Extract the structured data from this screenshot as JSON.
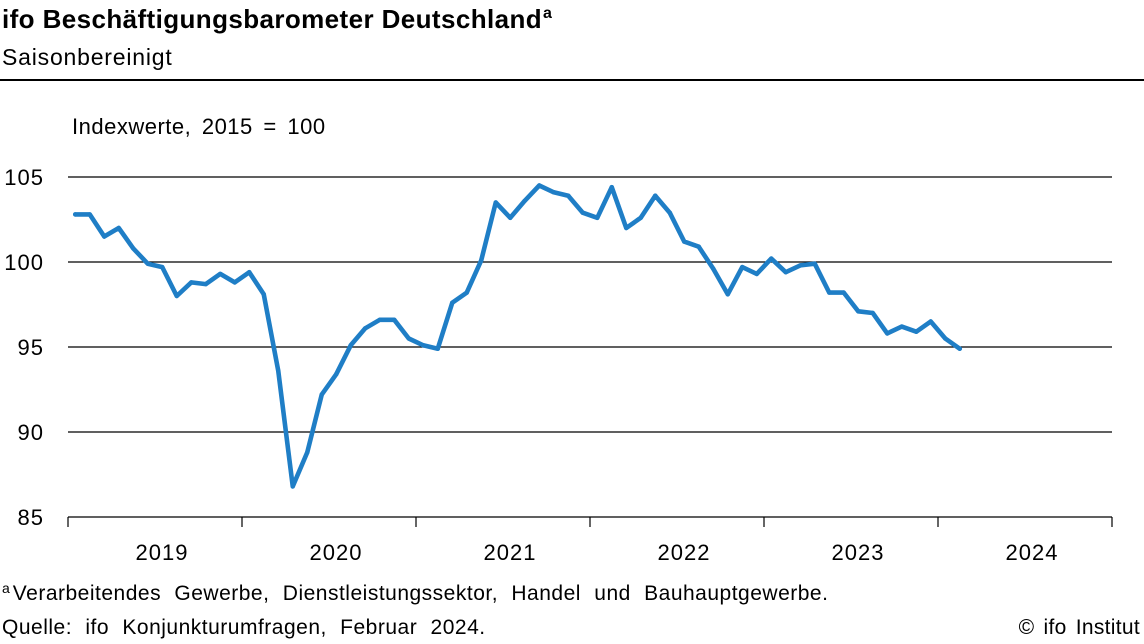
{
  "header": {
    "title_marker": "a"
  },
  "chart_data": {
    "type": "line",
    "title": "ifo Beschäftigungsbarometer Deutschland",
    "subtitle": "Saisonbereinigt",
    "ylabel": "Indexwerte, 2015 = 100",
    "x": [
      "2019-01",
      "2019-02",
      "2019-03",
      "2019-04",
      "2019-05",
      "2019-06",
      "2019-07",
      "2019-08",
      "2019-09",
      "2019-10",
      "2019-11",
      "2019-12",
      "2020-01",
      "2020-02",
      "2020-03",
      "2020-04",
      "2020-05",
      "2020-06",
      "2020-07",
      "2020-08",
      "2020-09",
      "2020-10",
      "2020-11",
      "2020-12",
      "2021-01",
      "2021-02",
      "2021-03",
      "2021-04",
      "2021-05",
      "2021-06",
      "2021-07",
      "2021-08",
      "2021-09",
      "2021-10",
      "2021-11",
      "2021-12",
      "2022-01",
      "2022-02",
      "2022-03",
      "2022-04",
      "2022-05",
      "2022-06",
      "2022-07",
      "2022-08",
      "2022-09",
      "2022-10",
      "2022-11",
      "2022-12",
      "2023-01",
      "2023-02",
      "2023-03",
      "2023-04",
      "2023-05",
      "2023-06",
      "2023-07",
      "2023-08",
      "2023-09",
      "2023-10",
      "2023-11",
      "2023-12",
      "2024-01",
      "2024-02"
    ],
    "series": [
      {
        "color": "#1f7ec6",
        "values": [
          102.8,
          102.8,
          101.5,
          102.0,
          100.8,
          99.9,
          99.7,
          98.0,
          98.8,
          98.7,
          99.3,
          98.8,
          99.4,
          98.1,
          93.6,
          86.8,
          88.8,
          92.2,
          93.4,
          95.1,
          96.1,
          96.6,
          96.6,
          95.5,
          95.1,
          94.9,
          97.6,
          98.2,
          100.1,
          103.5,
          102.6,
          103.6,
          104.5,
          104.1,
          103.9,
          102.9,
          102.6,
          104.4,
          102.0,
          102.6,
          103.9,
          102.9,
          101.2,
          100.9,
          99.6,
          98.1,
          99.7,
          99.3,
          100.2,
          99.4,
          99.8,
          99.9,
          98.2,
          98.2,
          97.1,
          97.0,
          95.8,
          96.2,
          95.9,
          96.5,
          95.5,
          94.9
        ]
      }
    ],
    "xlim": [
      "2019-01",
      "2024-12"
    ],
    "ylim": [
      85,
      105
    ],
    "yticks": [
      85,
      90,
      95,
      100,
      105
    ],
    "xtick_labels": [
      "2019",
      "2020",
      "2021",
      "2022",
      "2023",
      "2024"
    ],
    "grid": {
      "horizontal": true,
      "vertical": false
    },
    "legend": false
  },
  "footer": {
    "footnote_marker": "a",
    "footnote": "Verarbeitendes Gewerbe, Dienstleistungssektor, Handel und Bauhauptgewerbe.",
    "source": "Quelle: ifo Konjunkturumfragen, Februar 2024.",
    "copyright": "© ifo Institut"
  }
}
